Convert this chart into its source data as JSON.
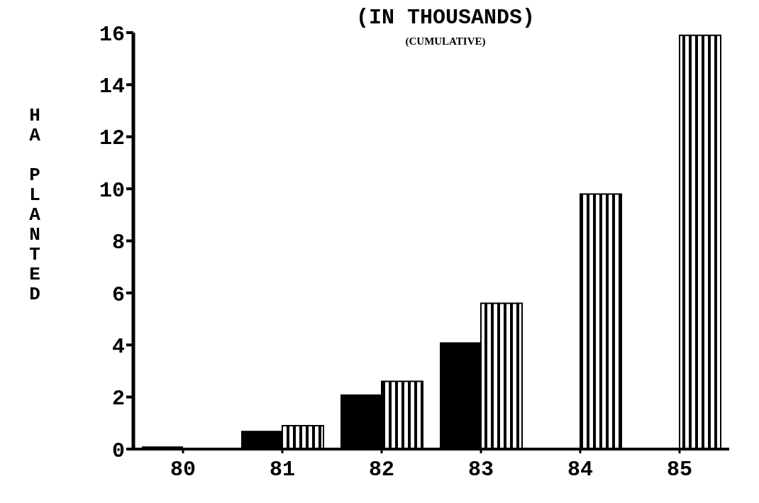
{
  "chart_data": {
    "type": "bar",
    "title": "(IN THOUSANDS)",
    "subtitle": "(CUMULATIVE)",
    "ylabel": "HA PLANTED",
    "categories": [
      "80",
      "81",
      "82",
      "83",
      "84",
      "85"
    ],
    "series": [
      {
        "color": "#000000",
        "values": [
          0.1,
          0.7,
          2.1,
          4.1,
          null,
          null
        ]
      },
      {
        "color": "#000000",
        "values": [
          0,
          0.9,
          2.6,
          5.6,
          9.8,
          15.9
        ]
      }
    ],
    "ylim": [
      0,
      16
    ],
    "yticks": [
      0,
      2,
      4,
      6,
      8,
      10,
      12,
      14,
      16
    ],
    "grid": false,
    "legend": false
  }
}
